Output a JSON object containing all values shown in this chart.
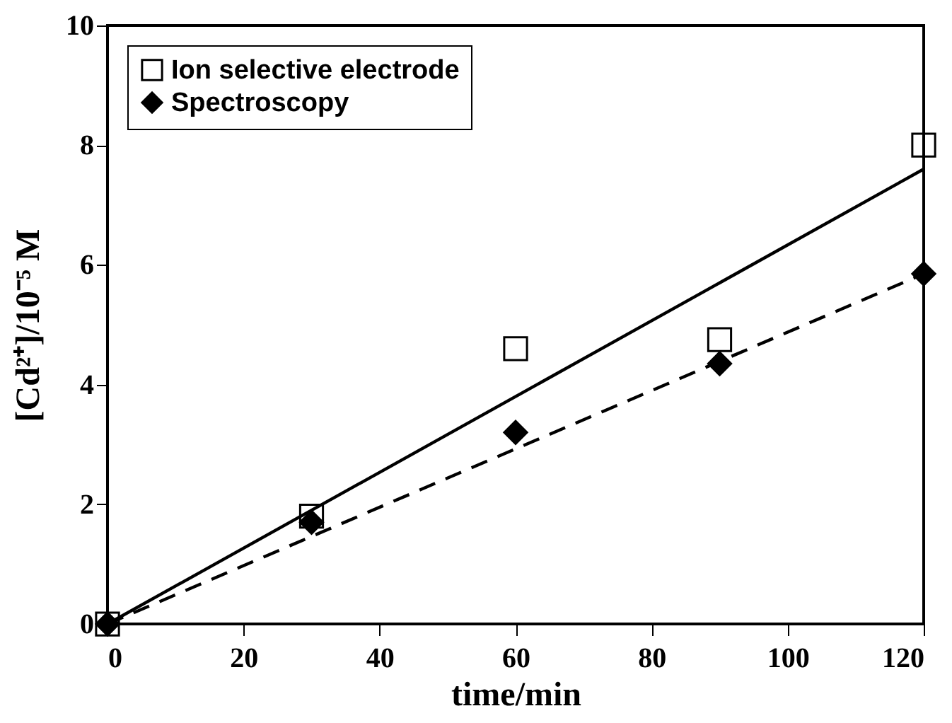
{
  "chart_data": {
    "type": "scatter",
    "xlabel": "time/min",
    "ylabel": "[Cd²⁺]/10⁻⁵ M",
    "xlim": [
      0,
      120
    ],
    "xticks": [
      0,
      20,
      40,
      60,
      80,
      100,
      120
    ],
    "ylim": [
      0,
      10
    ],
    "yticks": [
      0,
      2,
      4,
      6,
      8,
      10
    ],
    "grid": false,
    "legend": "top left",
    "series": [
      {
        "name": "Ion selective electrode",
        "marker": "square",
        "color": "#000000",
        "x": [
          0,
          30,
          60,
          90,
          120
        ],
        "values": [
          0,
          1.8,
          4.6,
          4.75,
          8.0
        ]
      },
      {
        "name": "Spectroscopy",
        "marker": "diamond",
        "color": "#000000",
        "x": [
          0,
          30,
          60,
          90,
          120
        ],
        "values": [
          0,
          1.7,
          3.2,
          4.35,
          5.85
        ]
      },
      {
        "type": "line",
        "line_style": "solid",
        "color": "#000000",
        "x": [
          0,
          120
        ],
        "values": [
          0,
          7.6
        ]
      },
      {
        "type": "line",
        "line_style": "dashed",
        "color": "#000000",
        "x": [
          0,
          120
        ],
        "values": [
          0,
          5.85
        ]
      }
    ]
  }
}
